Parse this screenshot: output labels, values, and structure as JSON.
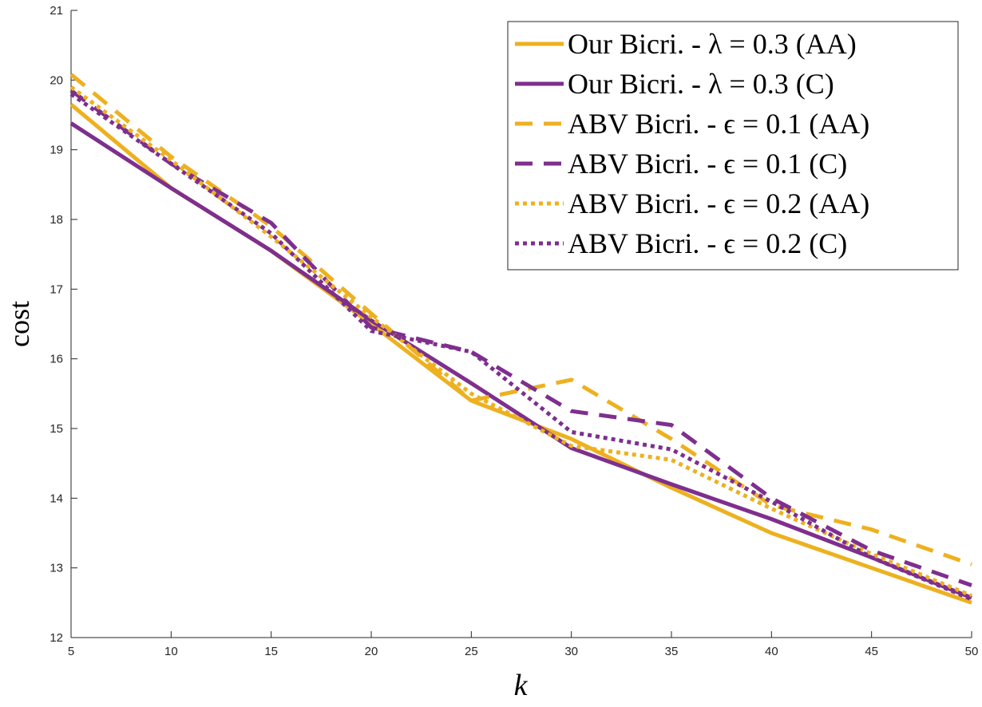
{
  "chart_data": {
    "type": "line",
    "title": "",
    "xlabel": "k",
    "ylabel": "cost",
    "xlim": [
      5,
      50
    ],
    "ylim": [
      12,
      21
    ],
    "xticks": [
      5,
      10,
      15,
      20,
      25,
      30,
      35,
      40,
      45,
      50
    ],
    "yticks": [
      12,
      13,
      14,
      15,
      16,
      17,
      18,
      19,
      20,
      21
    ],
    "grid": false,
    "legend_position": "top-right",
    "x": [
      5,
      10,
      15,
      20,
      25,
      30,
      35,
      40,
      45,
      50
    ],
    "series": [
      {
        "name": "Our Bicri. - λ = 0.3 (AA)",
        "color": "#EDB120",
        "style": "solid",
        "values": [
          19.65,
          18.45,
          17.55,
          16.5,
          15.4,
          14.85,
          14.15,
          13.5,
          13.0,
          12.5
        ]
      },
      {
        "name": "Our Bicri. - λ = 0.3 (C)",
        "color": "#7E2F8E",
        "style": "solid",
        "values": [
          19.38,
          18.45,
          17.55,
          16.55,
          15.65,
          14.72,
          14.2,
          13.7,
          13.15,
          12.57
        ]
      },
      {
        "name": "ABV Bicri. - ϵ = 0.1 (AA)",
        "color": "#EDB120",
        "style": "dashed",
        "values": [
          20.08,
          18.9,
          17.9,
          16.65,
          15.4,
          15.7,
          14.85,
          13.9,
          13.55,
          13.05
        ]
      },
      {
        "name": "ABV Bicri. - ϵ = 0.1 (C)",
        "color": "#7E2F8E",
        "style": "dashed",
        "values": [
          19.85,
          18.8,
          17.95,
          16.45,
          16.1,
          15.25,
          15.05,
          14.0,
          13.25,
          12.75
        ]
      },
      {
        "name": "ABV Bicri. - ϵ = 0.2 (AA)",
        "color": "#EDB120",
        "style": "dotted",
        "values": [
          19.9,
          18.85,
          17.75,
          16.6,
          15.5,
          14.75,
          14.55,
          13.85,
          13.2,
          12.6
        ]
      },
      {
        "name": "ABV Bicri. - ϵ = 0.2 (C)",
        "color": "#7E2F8E",
        "style": "dotted",
        "values": [
          19.8,
          18.8,
          17.8,
          16.4,
          16.1,
          14.95,
          14.7,
          13.95,
          13.15,
          12.55
        ]
      }
    ]
  }
}
